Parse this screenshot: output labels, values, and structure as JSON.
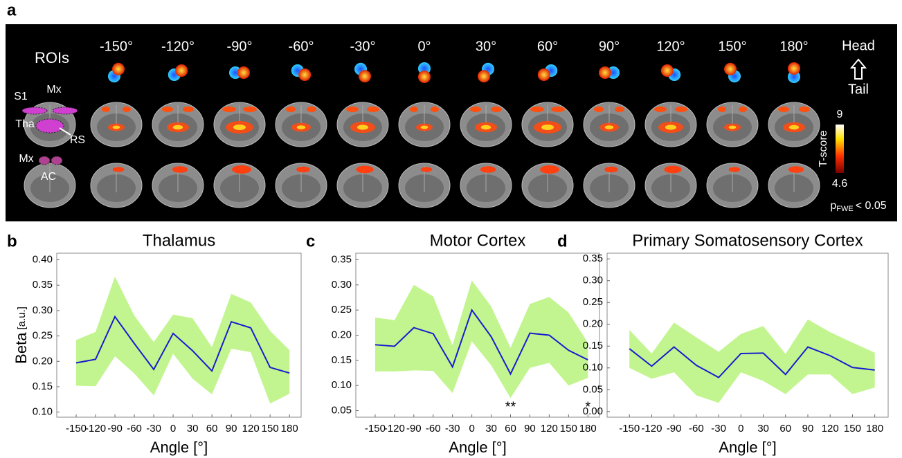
{
  "panel_a": {
    "label": "a",
    "title": "ROIs",
    "angles": [
      "-150°",
      "-120°",
      "-90°",
      "-60°",
      "-30°",
      "0°",
      "30°",
      "60°",
      "90°",
      "120°",
      "150°",
      "180°"
    ],
    "orientation": {
      "top": "Head",
      "bottom": "Tail"
    },
    "roi_labels": [
      "S1",
      "Mx",
      "Tha",
      "RS",
      "Mx",
      "AC"
    ],
    "colorbar": {
      "title": "T-score",
      "max": 9,
      "min": 4.6
    },
    "threshold": {
      "p": "p",
      "sub": "FWE",
      "text": "< 0.05"
    }
  },
  "chart_data": [
    {
      "type": "line",
      "label": "b",
      "title": "Thalamus",
      "ylabel": "Beta",
      "ylabel_unit": "[a.u.]",
      "xlabel": "Angle [°]",
      "x": [
        -150,
        -120,
        -90,
        -60,
        -30,
        0,
        30,
        60,
        90,
        120,
        150,
        180
      ],
      "xlim": [
        -180,
        198
      ],
      "xticks": [
        -150,
        -120,
        -90,
        -60,
        -30,
        0,
        30,
        60,
        90,
        120,
        150,
        180
      ],
      "ylim": [
        0.09,
        0.413
      ],
      "yticks": [
        {
          "value": 0.1,
          "label": "0.10"
        },
        0.15,
        {
          "value": 0.2,
          "label": "0.20"
        },
        0.25,
        {
          "value": 0.3,
          "label": "0.30"
        },
        0.35,
        {
          "value": 0.4,
          "label": "0.40"
        }
      ],
      "series": [
        {
          "color": "#1a1ad0",
          "values": [
            0.197,
            0.204,
            0.288,
            0.235,
            0.184,
            0.255,
            0.221,
            0.181,
            0.278,
            0.266,
            0.188,
            0.177
          ]
        }
      ],
      "band": {
        "color": "#c2f58f",
        "upper": [
          0.242,
          0.258,
          0.367,
          0.29,
          0.238,
          0.292,
          0.285,
          0.228,
          0.333,
          0.316,
          0.26,
          0.222
        ],
        "lower": [
          0.152,
          0.151,
          0.21,
          0.176,
          0.133,
          0.215,
          0.166,
          0.135,
          0.225,
          0.218,
          0.117,
          0.136
        ]
      }
    },
    {
      "type": "line",
      "label": "c",
      "title": "Motor Cortex",
      "xlabel": "Angle [°]",
      "x": [
        -150,
        -120,
        -90,
        -60,
        -30,
        0,
        30,
        60,
        90,
        120,
        150,
        180
      ],
      "xlim": [
        -180,
        198
      ],
      "xticks": [
        -150,
        -120,
        -90,
        -60,
        -30,
        0,
        30,
        60,
        90,
        120,
        150,
        180
      ],
      "ylim": [
        0.037,
        0.363
      ],
      "yticks": [
        0.05,
        {
          "value": 0.1,
          "label": "0.10"
        },
        0.15,
        {
          "value": 0.2,
          "label": "0.20"
        },
        0.25,
        {
          "value": 0.3,
          "label": "0.30"
        },
        0.35
      ],
      "series": [
        {
          "color": "#1a1ad0",
          "values": [
            0.181,
            0.178,
            0.215,
            0.203,
            0.137,
            0.25,
            0.197,
            0.123,
            0.204,
            0.2,
            0.17,
            0.151
          ]
        }
      ],
      "band": {
        "color": "#c2f58f",
        "upper": [
          0.235,
          0.23,
          0.3,
          0.277,
          0.18,
          0.309,
          0.257,
          0.175,
          0.262,
          0.276,
          0.245,
          0.185
        ],
        "lower": [
          0.128,
          0.128,
          0.13,
          0.129,
          0.085,
          0.188,
          0.14,
          0.075,
          0.135,
          0.145,
          0.1,
          0.115
        ]
      },
      "annotations": [
        {
          "x": 60,
          "text": "**"
        },
        {
          "x": 180,
          "text": "*"
        }
      ]
    },
    {
      "type": "line",
      "label": "d",
      "title": "Primary Somatosensory Cortex",
      "xlabel": "Angle [°]",
      "x": [
        -150,
        -120,
        -90,
        -60,
        -30,
        0,
        30,
        60,
        90,
        120,
        150,
        180
      ],
      "xlim": [
        -180,
        198
      ],
      "xticks": [
        -150,
        -120,
        -90,
        -60,
        -30,
        0,
        30,
        60,
        90,
        120,
        150,
        180
      ],
      "ylim": [
        -0.013,
        0.363
      ],
      "yticks": [
        {
          "value": 0,
          "label": "0.00"
        },
        0.05,
        {
          "value": 0.1,
          "label": "0.10"
        },
        0.15,
        {
          "value": 0.2,
          "label": "0.20"
        },
        0.25,
        {
          "value": 0.3,
          "label": "0.30"
        },
        0.35
      ],
      "series": [
        {
          "color": "#1a1ad0",
          "values": [
            0.144,
            0.104,
            0.148,
            0.106,
            0.078,
            0.133,
            0.134,
            0.085,
            0.148,
            0.128,
            0.101,
            0.095
          ]
        }
      ],
      "band": {
        "color": "#c2f58f",
        "upper": [
          0.187,
          0.133,
          0.204,
          0.17,
          0.137,
          0.178,
          0.196,
          0.132,
          0.211,
          0.182,
          0.158,
          0.135
        ],
        "lower": [
          0.1,
          0.075,
          0.09,
          0.037,
          0.02,
          0.09,
          0.07,
          0.04,
          0.085,
          0.085,
          0.04,
          0.055
        ]
      }
    }
  ]
}
